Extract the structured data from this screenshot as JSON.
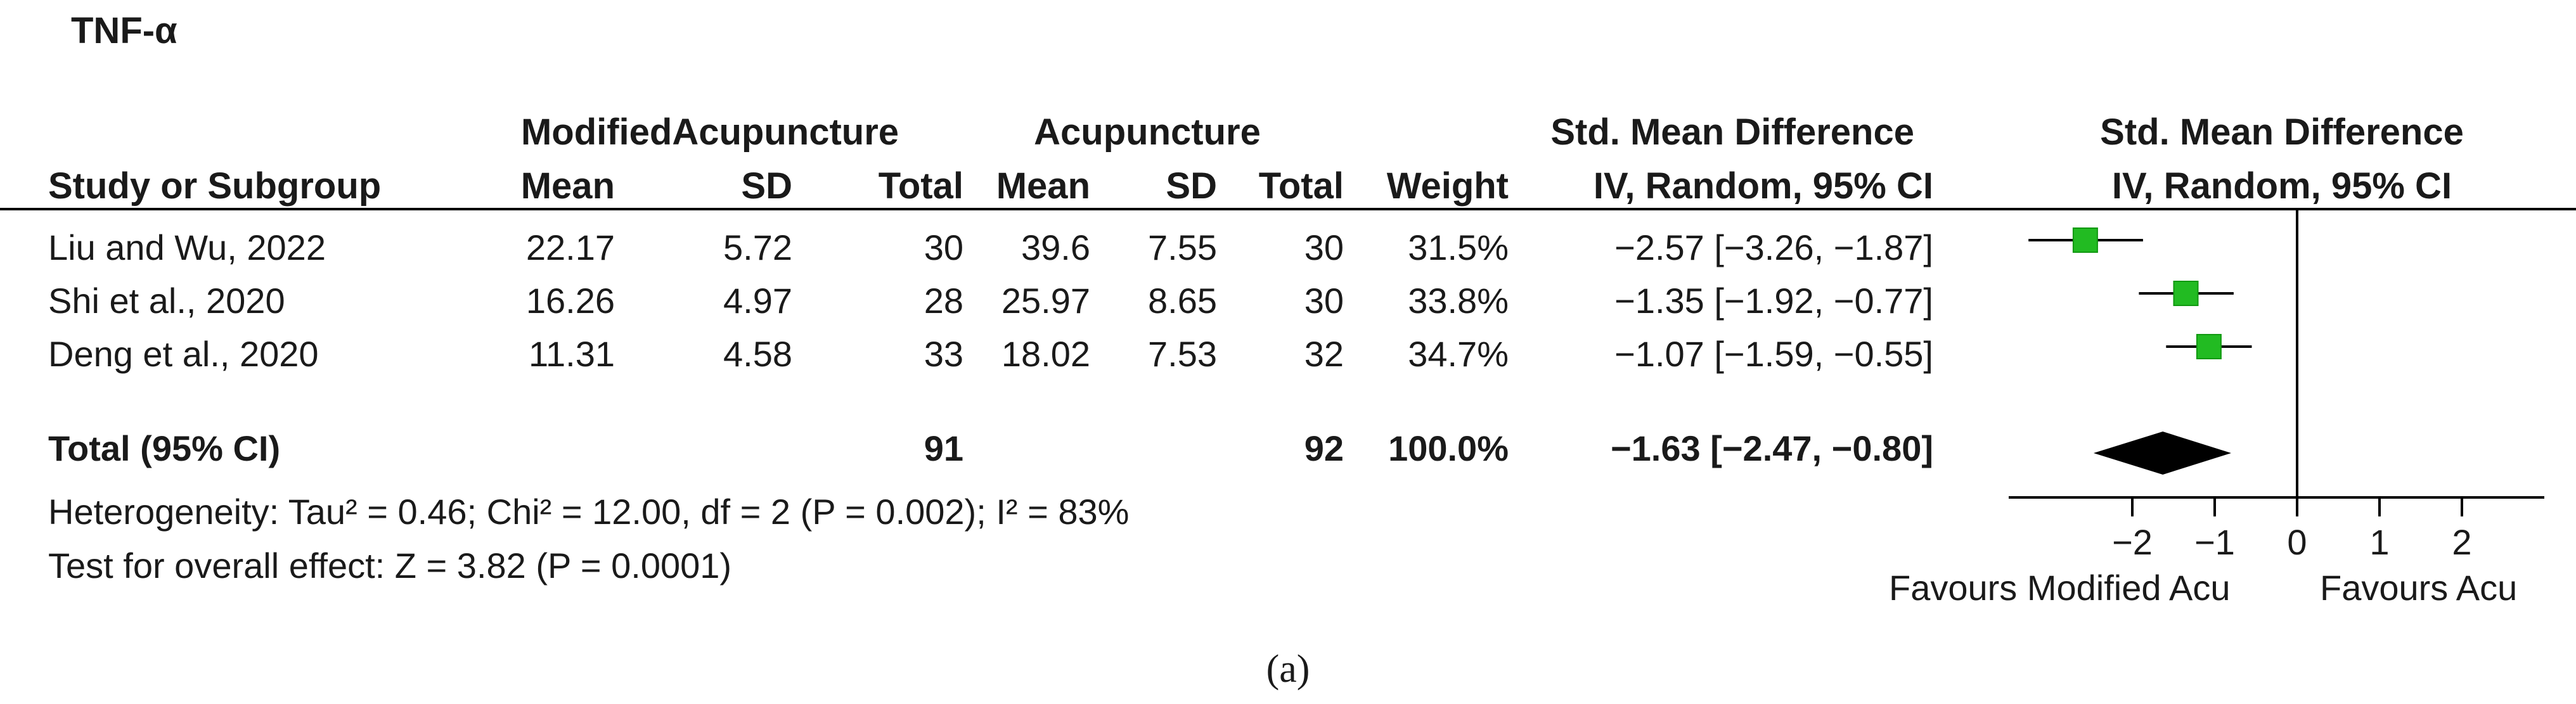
{
  "title": "TNF-α",
  "headers": {
    "group1": "ModifiedAcupuncture",
    "group2": "Acupuncture",
    "smd_col": "Std. Mean Difference",
    "smd_sub": "IV, Random, 95% CI",
    "plot_col": "Std. Mean Difference",
    "plot_sub": "IV, Random, 95% CI",
    "study": "Study or Subgroup",
    "mean1": "Mean",
    "sd1": "SD",
    "total1": "Total",
    "mean2": "Mean",
    "sd2": "SD",
    "total2": "Total",
    "weight": "Weight"
  },
  "studies": [
    {
      "name": "Liu and Wu, 2022",
      "mean1": "22.17",
      "sd1": "5.72",
      "total1": "30",
      "mean2": "39.6",
      "sd2": "7.55",
      "total2": "30",
      "weight": "31.5%",
      "ci_text": "−2.57 [−3.26, −1.87]"
    },
    {
      "name": "Shi et al., 2020",
      "mean1": "16.26",
      "sd1": "4.97",
      "total1": "28",
      "mean2": "25.97",
      "sd2": "8.65",
      "total2": "30",
      "weight": "33.8%",
      "ci_text": "−1.35 [−1.92, −0.77]"
    },
    {
      "name": "Deng et al., 2020",
      "mean1": "11.31",
      "sd1": "4.58",
      "total1": "33",
      "mean2": "18.02",
      "sd2": "7.53",
      "total2": "32",
      "weight": "34.7%",
      "ci_text": "−1.07 [−1.59, −0.55]"
    }
  ],
  "total": {
    "label": "Total (95% CI)",
    "total1": "91",
    "total2": "92",
    "weight": "100.0%",
    "ci_text": "−1.63 [−2.47, −0.80]"
  },
  "heterogeneity": "Heterogeneity: Tau² = 0.46; Chi² = 12.00, df = 2 (P = 0.002); I² = 83%",
  "overall_effect": "Test for overall effect: Z = 3.82 (P = 0.0001)",
  "favours_left": "Favours Modified Acu",
  "favours_right": "Favours Acu",
  "caption": "(a)",
  "colors": {
    "marker": "#22bb22",
    "diamond": "#000000",
    "line": "#000000"
  },
  "chart_data": {
    "type": "forest",
    "xlim": [
      -3.5,
      3
    ],
    "ticks": [
      -2,
      -1,
      0,
      1,
      2
    ],
    "tick_labels": [
      "−2",
      "−1",
      "0",
      "1",
      "2"
    ],
    "studies": [
      {
        "name": "Liu and Wu, 2022",
        "est": -2.57,
        "lo": -3.26,
        "hi": -1.87,
        "weight": 31.5
      },
      {
        "name": "Shi et al., 2020",
        "est": -1.35,
        "lo": -1.92,
        "hi": -0.77,
        "weight": 33.8
      },
      {
        "name": "Deng et al., 2020",
        "est": -1.07,
        "lo": -1.59,
        "hi": -0.55,
        "weight": 34.7
      }
    ],
    "pooled": {
      "est": -1.63,
      "lo": -2.47,
      "hi": -0.8
    }
  }
}
